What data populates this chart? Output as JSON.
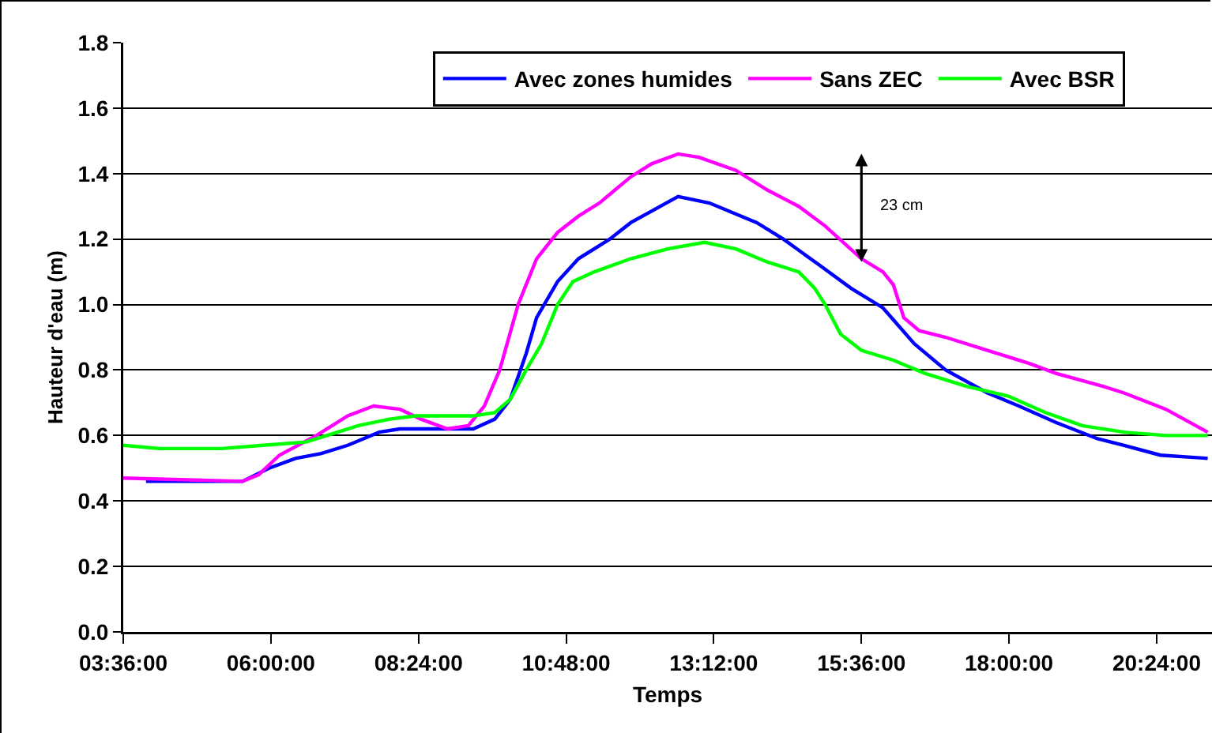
{
  "chart_data": {
    "type": "line",
    "xlabel": "Temps",
    "ylabel": "Hauteur d'eau (m)",
    "xlim": [
      3.6,
      21.3
    ],
    "xticks": [
      {
        "value": 3.6,
        "label": "03:36:00"
      },
      {
        "value": 6,
        "label": "06:00:00"
      },
      {
        "value": 8.4,
        "label": "08:24:00"
      },
      {
        "value": 10.8,
        "label": "10:48:00"
      },
      {
        "value": 13.2,
        "label": "13:12:00"
      },
      {
        "value": 15.6,
        "label": "15:36:00"
      },
      {
        "value": 18,
        "label": "18:00:00"
      },
      {
        "value": 20.4,
        "label": "20:24:00"
      }
    ],
    "ylim": [
      0,
      1.8
    ],
    "yticks": [
      {
        "value": 0,
        "label": "0.0"
      },
      0.2,
      0.4,
      0.6,
      0.8,
      {
        "value": 1,
        "label": "1.0"
      },
      1.2,
      1.4,
      1.6,
      1.8
    ],
    "grid": "y",
    "legend": "top right",
    "marker": "none",
    "line_style": "solid",
    "annotations": [
      "23 cm"
    ],
    "series": [
      {
        "name": "Avec zones humides",
        "color": "#0000ff",
        "x": [
          3.97,
          5.54,
          5.97,
          6.4,
          6.82,
          7.25,
          7.76,
          8.1,
          9.29,
          9.64,
          9.89,
          10.15,
          10.32,
          10.66,
          11.0,
          11.51,
          11.85,
          12.62,
          13.13,
          13.9,
          14.33,
          14.92,
          15.43,
          15.95,
          16.46,
          16.97,
          17.65,
          18.16,
          18.76,
          19.44,
          19.87,
          20.46,
          21.23
        ],
        "values": [
          0.46,
          0.46,
          0.5,
          0.53,
          0.545,
          0.57,
          0.61,
          0.62,
          0.62,
          0.65,
          0.71,
          0.85,
          0.96,
          1.07,
          1.14,
          1.2,
          1.25,
          1.33,
          1.31,
          1.25,
          1.2,
          1.12,
          1.05,
          0.99,
          0.88,
          0.8,
          0.73,
          0.69,
          0.64,
          0.59,
          0.57,
          0.54,
          0.53
        ]
      },
      {
        "name": "Sans ZEC",
        "color": "#ff00ff",
        "x": [
          3.6,
          5.54,
          5.8,
          6.14,
          6.74,
          7.25,
          7.67,
          8.1,
          8.44,
          8.87,
          9.21,
          9.47,
          9.72,
          10.02,
          10.32,
          10.66,
          11.0,
          11.34,
          11.85,
          12.19,
          12.62,
          12.96,
          13.56,
          14.07,
          14.58,
          15.01,
          15.6,
          15.95,
          16.12,
          16.29,
          16.54,
          16.97,
          17.65,
          18.33,
          18.76,
          19.53,
          19.87,
          20.55,
          21.23
        ],
        "values": [
          0.47,
          0.46,
          0.48,
          0.54,
          0.6,
          0.66,
          0.69,
          0.68,
          0.65,
          0.62,
          0.63,
          0.69,
          0.8,
          1.0,
          1.14,
          1.22,
          1.27,
          1.31,
          1.39,
          1.43,
          1.46,
          1.45,
          1.41,
          1.35,
          1.3,
          1.24,
          1.14,
          1.1,
          1.06,
          0.96,
          0.92,
          0.9,
          0.86,
          0.82,
          0.79,
          0.75,
          0.73,
          0.68,
          0.61
        ]
      },
      {
        "name": "Avec BSR",
        "color": "#00ff00",
        "x": [
          3.6,
          4.18,
          5.2,
          5.88,
          6.57,
          6.91,
          7.42,
          7.93,
          8.36,
          9.29,
          9.64,
          9.89,
          10.15,
          10.4,
          10.66,
          10.91,
          11.26,
          11.85,
          12.45,
          13.05,
          13.56,
          14.07,
          14.58,
          14.84,
          15.01,
          15.26,
          15.6,
          16.12,
          16.63,
          17.31,
          17.99,
          18.59,
          19.19,
          19.87,
          20.55,
          21.23
        ],
        "values": [
          0.57,
          0.56,
          0.56,
          0.57,
          0.58,
          0.6,
          0.63,
          0.65,
          0.66,
          0.66,
          0.67,
          0.71,
          0.8,
          0.88,
          1.0,
          1.07,
          1.1,
          1.14,
          1.17,
          1.19,
          1.17,
          1.13,
          1.1,
          1.05,
          1.0,
          0.91,
          0.86,
          0.83,
          0.79,
          0.75,
          0.72,
          0.67,
          0.63,
          0.61,
          0.6,
          0.6
        ]
      }
    ]
  }
}
